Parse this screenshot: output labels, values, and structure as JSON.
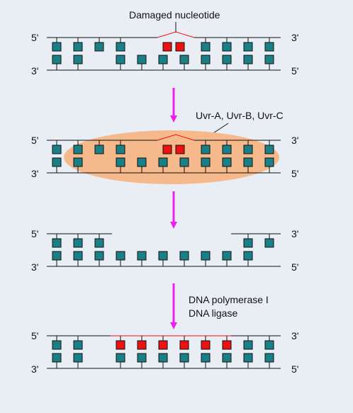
{
  "labels": {
    "damaged": "Damaged nucleotide",
    "enzymes": "Uvr-A, Uvr-B, Uvr-C",
    "polymerase": "DNA polymerase I",
    "ligase": "DNA ligase"
  },
  "ends": {
    "five": "5'",
    "three": "3'"
  },
  "colors": {
    "background": "#e9eef5",
    "base": "#1a7f86",
    "damaged": "#ee1111",
    "new_strand": "#ee1111",
    "arrow": "#ee22ee",
    "enzyme_blob": "#f5b98c",
    "line": "#111111"
  },
  "stages": [
    {
      "id": "damaged",
      "top_bases": "nnnnddnnnn",
      "bottom_bases": "nnnnnnnnnn",
      "kink": true,
      "blob": false,
      "gap": false,
      "new_strand": false
    },
    {
      "id": "recognition",
      "top_bases": "nnnnddnnnn",
      "bottom_bases": "nnnnnnnnnn",
      "kink": true,
      "blob": true,
      "gap": false,
      "new_strand": false
    },
    {
      "id": "excision",
      "top_bases": "nnn______nn",
      "bottom_bases": "nnnnnnnnnn",
      "kink": false,
      "blob": false,
      "gap": true,
      "new_strand": false
    },
    {
      "id": "repair",
      "top_bases": "nnrrrrrrnn",
      "bottom_bases": "nnnnnnnnnn",
      "kink": false,
      "blob": false,
      "gap": false,
      "new_strand": true
    }
  ]
}
